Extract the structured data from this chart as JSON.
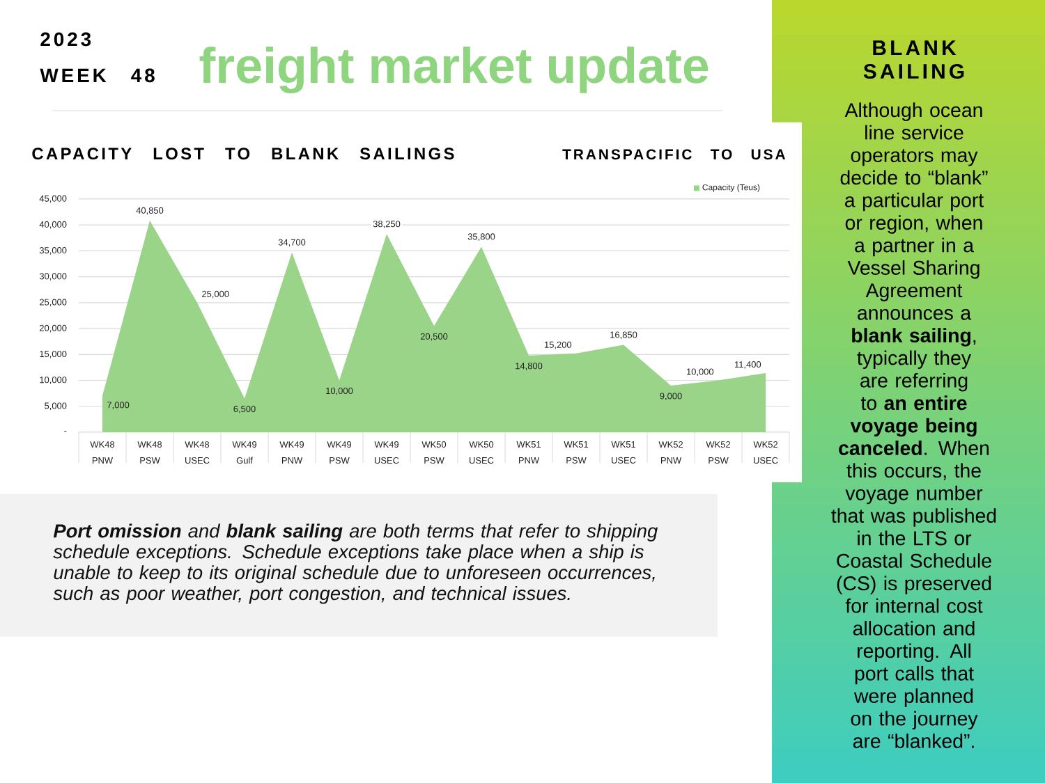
{
  "chart_data": {
    "type": "area",
    "title": "CAPACITY LOST TO BLANK SAILINGS",
    "subtitle": "TRANSPACIFIC TO USA",
    "categories": [
      "WK48 PNW",
      "WK48 PSW",
      "WK48 USEC",
      "WK49 Gulf",
      "WK49 PNW",
      "WK49 PSW",
      "WK49 USEC",
      "WK50 PSW",
      "WK50 USEC",
      "WK51 PNW",
      "WK51 PSW",
      "WK51 USEC",
      "WK52 PNW",
      "WK52 PSW",
      "WK52 USEC"
    ],
    "series": [
      {
        "name": "Capacity (Teus)",
        "color": "#9ad488",
        "values": [
          7000,
          40850,
          25000,
          6500,
          34700,
          10000,
          38250,
          20500,
          35800,
          14800,
          15200,
          16850,
          9000,
          10000,
          11400
        ],
        "value_labels": [
          "7,000",
          "40,850",
          "25,000",
          "6,500",
          "34,700",
          "10,000",
          "38,250",
          "20,500",
          "35,800",
          "14,800",
          "15,200",
          "16,850",
          "9,000",
          "10,000",
          "11,400"
        ]
      }
    ],
    "ylim": [
      0,
      45000
    ],
    "yticks": [
      {
        "value": 0,
        "label": "-"
      },
      {
        "value": 5000,
        "label": "5,000"
      },
      {
        "value": 10000,
        "label": "10,000"
      },
      {
        "value": 15000,
        "label": "15,000"
      },
      {
        "value": 20000,
        "label": "20,000"
      },
      {
        "value": 25000,
        "label": "25,000"
      },
      {
        "value": 30000,
        "label": "30,000"
      },
      {
        "value": 35000,
        "label": "35,000"
      },
      {
        "value": 40000,
        "label": "40,000"
      },
      {
        "value": 45000,
        "label": "45,000"
      }
    ],
    "grid": "y",
    "legend": "top right",
    "annotations": [
      "2023",
      "WEEK 48",
      "freight market update",
      "BLANK SAILING",
      "Although ocean line service operators may decide to “blank” a particular port or region, when a partner in a Vessel Sharing Agreement announces a **blank sailing**, typically they are referring to **an entire voyage being canceled**. When this occurs, the voyage number that was published in the LTS or Coastal Schedule (CS) is preserved for internal cost allocation and reporting. All port calls that were planned on the journey are “blanked”.",
      "**Port omission** and **blank sailing** are both terms that refer to shipping schedule exceptions. Schedule exceptions take place when a ship is unable to keep to its original schedule due to unforeseen occurrences, such as poor weather, port congestion, and technical issues."
    ]
  }
}
